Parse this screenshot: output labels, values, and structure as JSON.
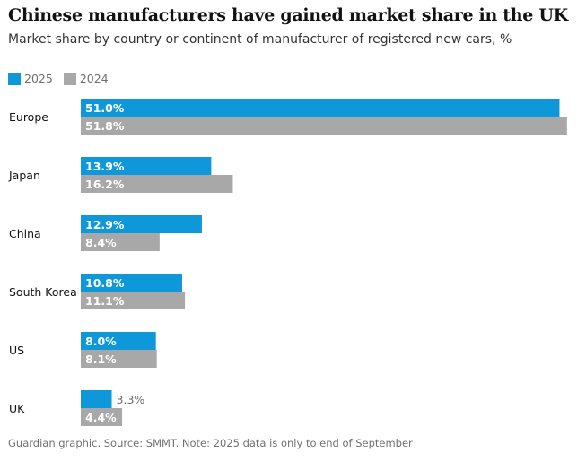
{
  "title": "Chinese manufacturers have gained market share in the UK",
  "subtitle": "Market share by country or continent of manufacturer of registered new cars, %",
  "source": "Guardian graphic. Source: SMMT. Note: 2025 data is only to end of September",
  "colors": {
    "series_2025": "#0e97d9",
    "series_2024": "#a8a8a8",
    "text_on_bar": "#ffffff",
    "text_outside": "#707070"
  },
  "chart_data": {
    "type": "bar",
    "orientation": "horizontal",
    "categories": [
      "Europe",
      "Japan",
      "China",
      "South Korea",
      "US",
      "UK"
    ],
    "series": [
      {
        "name": "2025",
        "values": [
          51.0,
          13.9,
          12.9,
          10.8,
          8.0,
          3.3
        ],
        "labels": [
          "51.0%",
          "13.9%",
          "12.9%",
          "10.8%",
          "8.0%",
          "3.3%"
        ]
      },
      {
        "name": "2024",
        "values": [
          51.8,
          16.2,
          8.4,
          11.1,
          8.1,
          4.4
        ],
        "labels": [
          "51.8%",
          "16.2%",
          "8.4%",
          "11.1%",
          "8.1%",
          "4.4%"
        ]
      }
    ],
    "xlim": [
      0,
      52
    ],
    "grid": false,
    "legend": "top-left"
  }
}
